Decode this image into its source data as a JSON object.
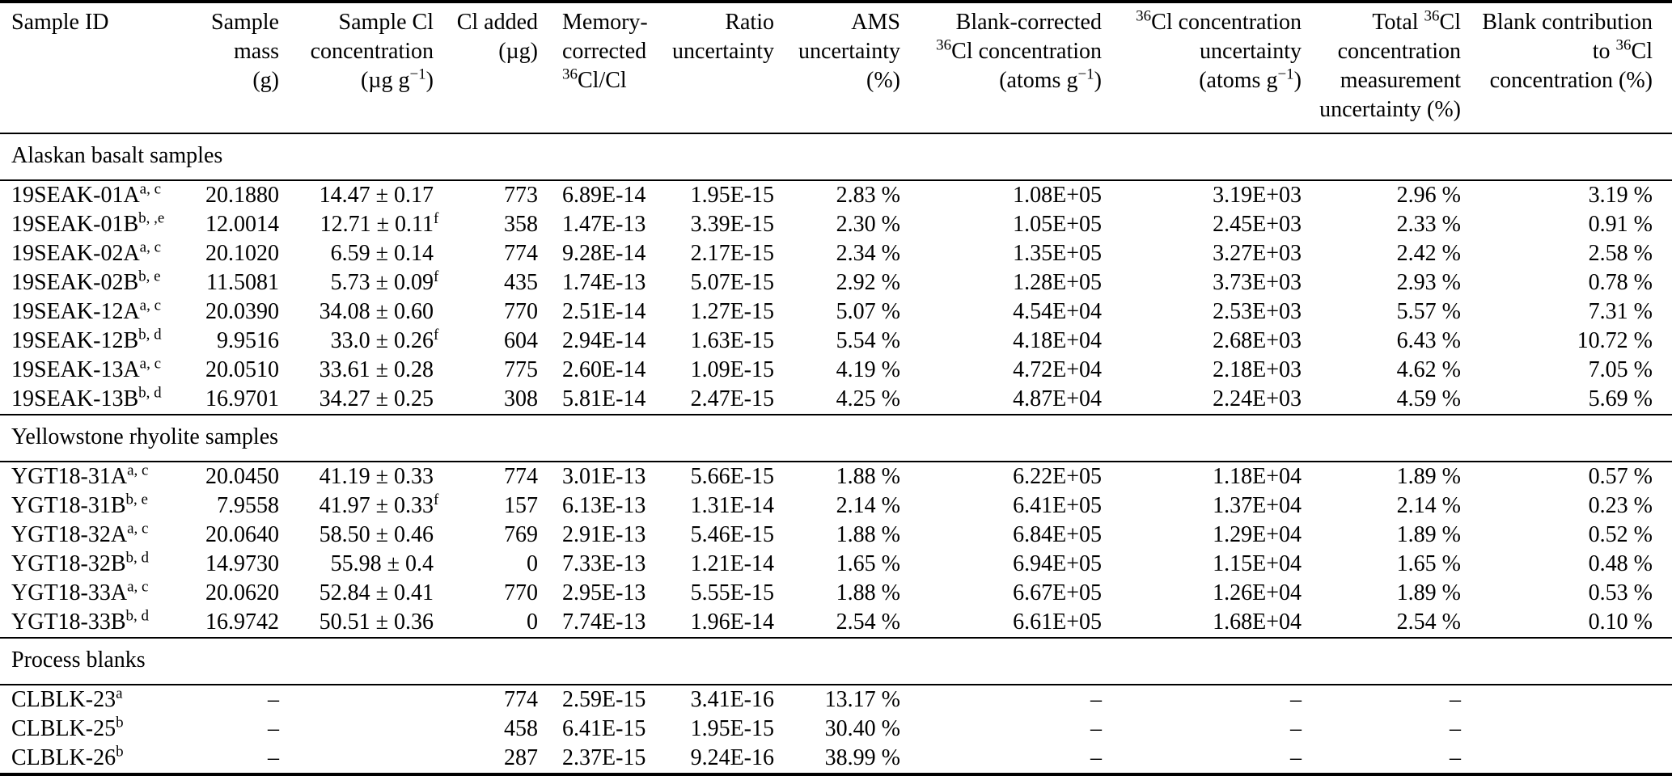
{
  "colors": {
    "text": "#000000",
    "background": "#ffffff",
    "rules": "#000000"
  },
  "table": {
    "columns": [
      {
        "label": "Sample ID"
      },
      {
        "label": "Sample\nmass\n(g)"
      },
      {
        "label": "Sample Cl\nconcentration\n(µg g^{−1})"
      },
      {
        "label": "Cl added\n(µg)"
      },
      {
        "label": "Memory-\ncorrected\n^{36}Cl/Cl"
      },
      {
        "label": "Ratio\nuncertainty"
      },
      {
        "label": "AMS\nuncertainty\n(%)"
      },
      {
        "label": "Blank-corrected\n^{36}Cl concentration\n(atoms g^{−1})"
      },
      {
        "label": "^{36}Cl concentration\nuncertainty\n(atoms g^{−1})"
      },
      {
        "label": "Total ^{36}Cl\nconcentration\nmeasurement\nuncertainty (%)"
      },
      {
        "label": "Blank contribution\nto ^{36}Cl\nconcentration (%)"
      }
    ],
    "sections": [
      {
        "title": "Alaskan basalt samples",
        "rows": [
          [
            "19SEAK-01A^{a, c}",
            "20.1880",
            "14.47 ± 0.17",
            "773",
            "6.89E-14",
            "1.95E-15",
            "2.83 %",
            "1.08E+05",
            "3.19E+03",
            "2.96 %",
            "3.19 %"
          ],
          [
            "19SEAK-01B^{b, ,e}",
            "12.0014",
            "12.71 ± 0.11^[f]",
            "358",
            "1.47E-13",
            "3.39E-15",
            "2.30 %",
            "1.05E+05",
            "2.45E+03",
            "2.33 %",
            "0.91 %"
          ],
          [
            "19SEAK-02A^{a, c}",
            "20.1020",
            "6.59 ± 0.14",
            "774",
            "9.28E-14",
            "2.17E-15",
            "2.34 %",
            "1.35E+05",
            "3.27E+03",
            "2.42 %",
            "2.58 %"
          ],
          [
            "19SEAK-02B^{b, e}",
            "11.5081",
            "5.73 ± 0.09^[f]",
            "435",
            "1.74E-13",
            "5.07E-15",
            "2.92 %",
            "1.28E+05",
            "3.73E+03",
            "2.93 %",
            "0.78 %"
          ],
          [
            "19SEAK-12A^{a, c}",
            "20.0390",
            "34.08 ± 0.60",
            "770",
            "2.51E-14",
            "1.27E-15",
            "5.07 %",
            "4.54E+04",
            "2.53E+03",
            "5.57 %",
            "7.31 %"
          ],
          [
            "19SEAK-12B^{b, d}",
            "9.9516",
            "33.0 ± 0.26^[f]",
            "604",
            "2.94E-14",
            "1.63E-15",
            "5.54 %",
            "4.18E+04",
            "2.68E+03",
            "6.43 %",
            "10.72 %"
          ],
          [
            "19SEAK-13A^{a, c}",
            "20.0510",
            "33.61 ± 0.28",
            "775",
            "2.60E-14",
            "1.09E-15",
            "4.19 %",
            "4.72E+04",
            "2.18E+03",
            "4.62 %",
            "7.05 %"
          ],
          [
            "19SEAK-13B^{b, d}",
            "16.9701",
            "34.27 ± 0.25",
            "308",
            "5.81E-14",
            "2.47E-15",
            "4.25 %",
            "4.87E+04",
            "2.24E+03",
            "4.59 %",
            "5.69 %"
          ]
        ]
      },
      {
        "title": "Yellowstone rhyolite samples",
        "rows": [
          [
            "YGT18-31A^{a, c}",
            "20.0450",
            "41.19 ± 0.33",
            "774",
            "3.01E-13",
            "5.66E-15",
            "1.88 %",
            "6.22E+05",
            "1.18E+04",
            "1.89 %",
            "0.57 %"
          ],
          [
            "YGT18-31B^{b, e}",
            "7.9558",
            "41.97 ± 0.33^[f]",
            "157",
            "6.13E-13",
            "1.31E-14",
            "2.14 %",
            "6.41E+05",
            "1.37E+04",
            "2.14 %",
            "0.23 %"
          ],
          [
            "YGT18-32A^{a, c}",
            "20.0640",
            "58.50 ± 0.46",
            "769",
            "2.91E-13",
            "5.46E-15",
            "1.88 %",
            "6.84E+05",
            "1.29E+04",
            "1.89 %",
            "0.52 %"
          ],
          [
            "YGT18-32B^{b, d}",
            "14.9730",
            "55.98 ± 0.4",
            "0",
            "7.33E-13",
            "1.21E-14",
            "1.65 %",
            "6.94E+05",
            "1.15E+04",
            "1.65 %",
            "0.48 %"
          ],
          [
            "YGT18-33A^{a, c}",
            "20.0620",
            "52.84 ± 0.41",
            "770",
            "2.95E-13",
            "5.55E-15",
            "1.88 %",
            "6.67E+05",
            "1.26E+04",
            "1.89 %",
            "0.53 %"
          ],
          [
            "YGT18-33B^{b, d}",
            "16.9742",
            "50.51 ± 0.36",
            "0",
            "7.74E-13",
            "1.96E-14",
            "2.54 %",
            "6.61E+05",
            "1.68E+04",
            "2.54 %",
            "0.10 %"
          ]
        ]
      },
      {
        "title": "Process blanks",
        "rows": [
          [
            "CLBLK-23^{a}",
            "–",
            "",
            "774",
            "2.59E-15",
            "3.41E-16",
            "13.17 %",
            "–",
            "–",
            "–",
            ""
          ],
          [
            "CLBLK-25^{b}",
            "–",
            "",
            "458",
            "6.41E-15",
            "1.95E-15",
            "30.40 %",
            "–",
            "–",
            "–",
            ""
          ],
          [
            "CLBLK-26^{b}",
            "–",
            "",
            "287",
            "2.37E-15",
            "9.24E-16",
            "38.99 %",
            "–",
            "–",
            "–",
            ""
          ]
        ]
      }
    ]
  }
}
